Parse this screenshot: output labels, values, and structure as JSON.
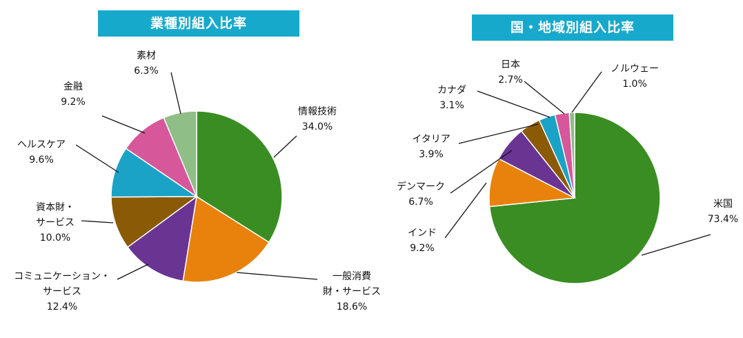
{
  "chart_data": [
    {
      "type": "pie",
      "title": "業種別組入比率",
      "title_bg": "#17a9cc",
      "slices": [
        {
          "label": "情報技術",
          "value": 34.0,
          "value_text": "34.0%",
          "color": "#3a8d22"
        },
        {
          "label": "一般消費\n財・サービス",
          "value": 18.6,
          "value_text": "18.6%",
          "color": "#e8820c"
        },
        {
          "label": "コミュニケーション・\nサービス",
          "value": 12.4,
          "value_text": "12.4%",
          "color": "#6a3493"
        },
        {
          "label": "資本財・\nサービス",
          "value": 10.0,
          "value_text": "10.0%",
          "color": "#8a5a06"
        },
        {
          "label": "ヘルスケア",
          "value": 9.6,
          "value_text": "9.6%",
          "color": "#1aa3c6"
        },
        {
          "label": "金融",
          "value": 9.2,
          "value_text": "9.2%",
          "color": "#d6579a"
        },
        {
          "label": "素材",
          "value": 6.3,
          "value_text": "6.3%",
          "color": "#8fbe86"
        }
      ]
    },
    {
      "type": "pie",
      "title": "国・地域別組入比率",
      "title_bg": "#17a9cc",
      "slices": [
        {
          "label": "米国",
          "value": 73.4,
          "value_text": "73.4%",
          "color": "#3a8d22"
        },
        {
          "label": "インド",
          "value": 9.2,
          "value_text": "9.2%",
          "color": "#e8820c"
        },
        {
          "label": "デンマーク",
          "value": 6.7,
          "value_text": "6.7%",
          "color": "#6a3493"
        },
        {
          "label": "イタリア",
          "value": 3.9,
          "value_text": "3.9%",
          "color": "#8a5a06"
        },
        {
          "label": "カナダ",
          "value": 3.1,
          "value_text": "3.1%",
          "color": "#1aa3c6"
        },
        {
          "label": "日本",
          "value": 2.7,
          "value_text": "2.7%",
          "color": "#d6579a"
        },
        {
          "label": "ノルウェー",
          "value": 1.0,
          "value_text": "1.0%",
          "color": "#8fbe86"
        }
      ]
    }
  ]
}
